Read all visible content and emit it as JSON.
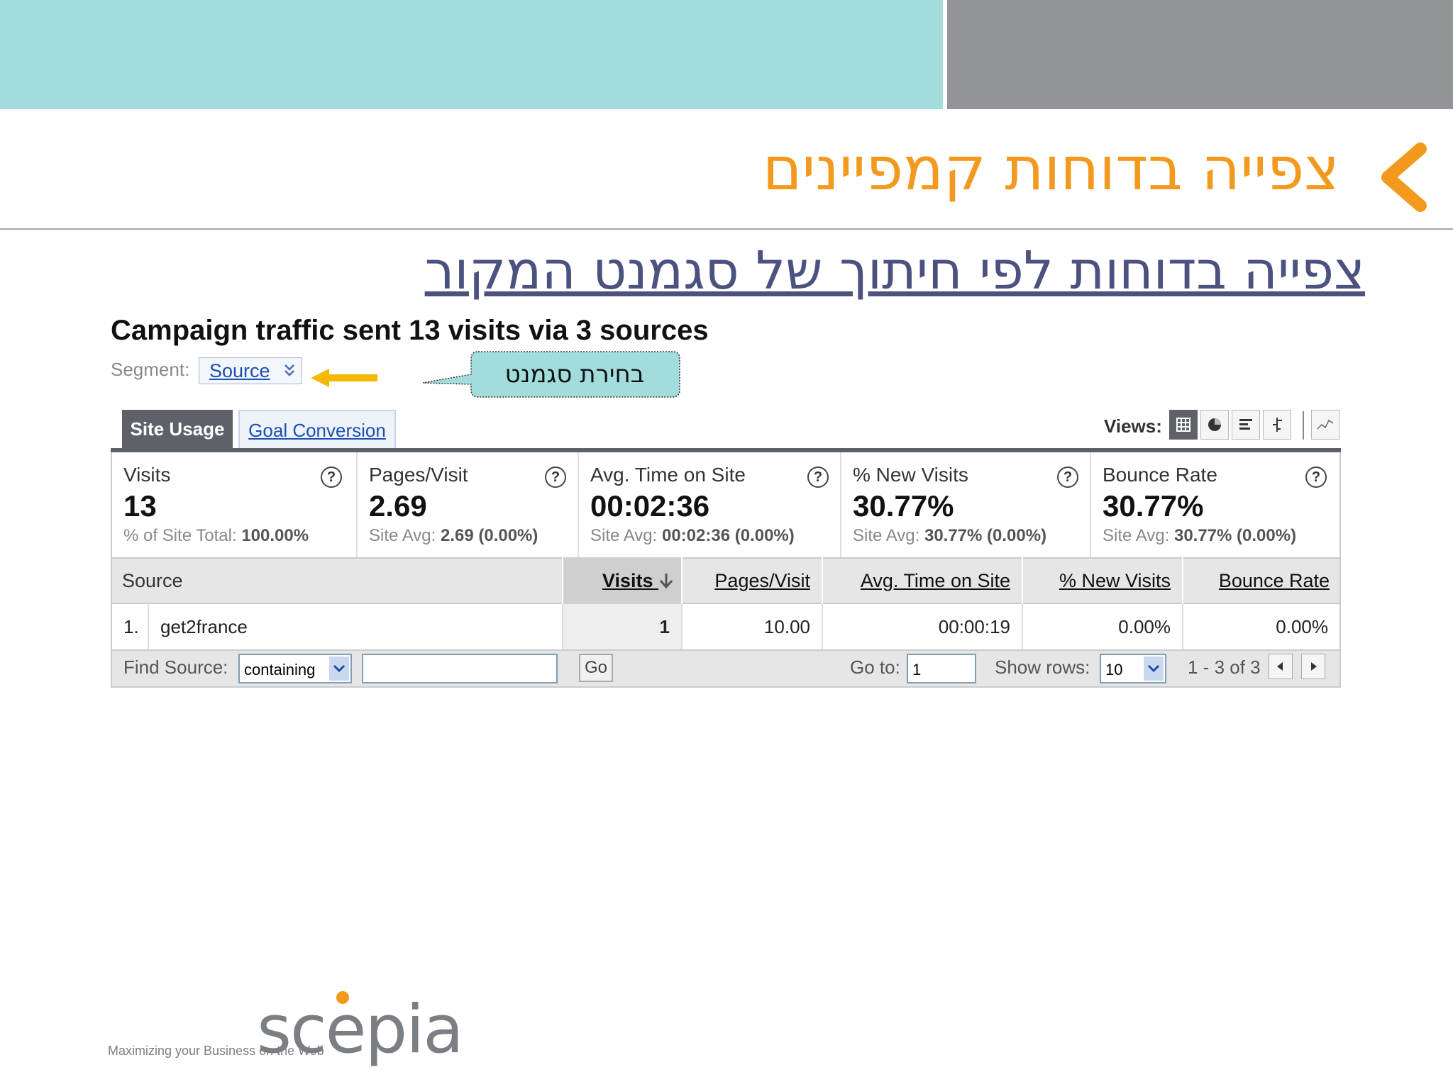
{
  "slide": {
    "title": "צפייה בדוחות קמפיינים",
    "subtitle": "צפייה בדוחות לפי חיתוך של סגמנט המקור",
    "accent_color": "#f39a1e",
    "band_left_color": "#a3dcdd",
    "band_right_color": "#939497"
  },
  "report": {
    "heading": "Campaign traffic sent 13 visits via 3 sources",
    "segment_label": "Segment:",
    "segment_value": "Source",
    "callout_text": "בחירת סגמנט"
  },
  "tabs": [
    {
      "label": "Site Usage",
      "active": true
    },
    {
      "label": "Goal Conversion",
      "active": false
    }
  ],
  "views": {
    "label": "Views:",
    "icons": [
      "table-view-icon",
      "pie-view-icon",
      "bar-view-icon",
      "comparison-view-icon",
      "sparkline-view-icon"
    ]
  },
  "metrics": [
    {
      "label": "Visits",
      "value": "13",
      "sub_prefix": "% of Site Total:",
      "sub_value": "100.00%"
    },
    {
      "label": "Pages/Visit",
      "value": "2.69",
      "sub_prefix": "Site Avg:",
      "sub_value": "2.69 (0.00%)"
    },
    {
      "label": "Avg. Time on Site",
      "value": "00:02:36",
      "sub_prefix": "Site Avg:",
      "sub_value": "00:02:36 (0.00%)"
    },
    {
      "label": "% New Visits",
      "value": "30.77%",
      "sub_prefix": "Site Avg:",
      "sub_value": "30.77% (0.00%)"
    },
    {
      "label": "Bounce Rate",
      "value": "30.77%",
      "sub_prefix": "Site Avg:",
      "sub_value": "30.77% (0.00%)"
    }
  ],
  "help_glyph": "?",
  "table": {
    "columns": [
      "Source",
      "Visits",
      "Pages/Visit",
      "Avg. Time on Site",
      "% New Visits",
      "Bounce Rate"
    ],
    "rows": [
      {
        "index": "1.",
        "source": "get2france",
        "visits": "1",
        "pages_visit": "10.00",
        "avg_time": "00:00:19",
        "new_visits": "0.00%",
        "bounce_rate": "0.00%"
      }
    ]
  },
  "footer": {
    "find_label": "Find Source:",
    "find_mode": "containing",
    "find_value": "",
    "go_label": "Go",
    "goto_label": "Go to:",
    "goto_value": "1",
    "show_rows_label": "Show rows:",
    "show_rows_value": "10",
    "range_text": "1 - 3 of 3"
  },
  "logo": {
    "name": "scepia",
    "tagline": "Maximizing your Business on the Web"
  }
}
